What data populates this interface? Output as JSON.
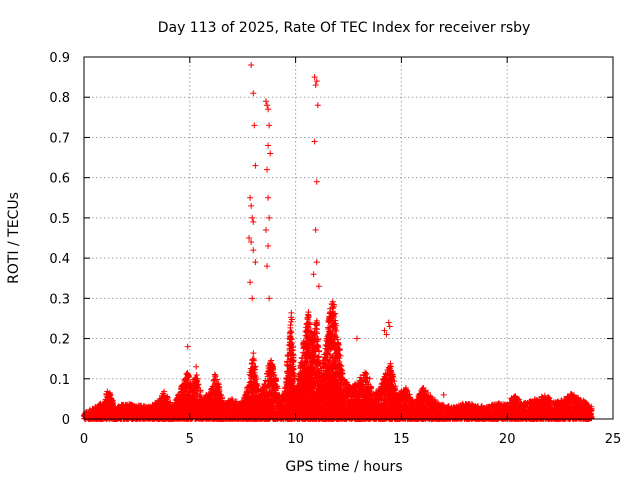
{
  "chart_data": {
    "type": "scatter",
    "title": "Day 113 of 2025, Rate Of TEC Index for receiver rsby",
    "xlabel": "GPS time / hours",
    "ylabel": "ROTI / TECUs",
    "xlim": [
      0,
      25
    ],
    "ylim": [
      0,
      0.9
    ],
    "x_ticks": [
      "0",
      "5",
      "10",
      "15",
      "20",
      "25"
    ],
    "y_ticks": [
      "0",
      "0.1",
      "0.2",
      "0.3",
      "0.4",
      "0.5",
      "0.6",
      "0.7",
      "0.8",
      "0.9"
    ],
    "grid": true,
    "marker": "+",
    "color": "#ff0000",
    "series": [
      {
        "x": [
          4.9,
          5.3,
          7.9,
          8.0,
          8.05,
          8.1,
          7.85,
          7.9,
          7.95,
          8.0,
          7.8,
          7.9,
          8.0,
          8.1,
          7.85,
          7.95,
          8.6,
          8.65,
          8.7,
          8.75,
          8.7,
          8.8,
          8.65,
          8.7,
          8.75,
          8.6,
          8.7,
          8.65,
          8.75,
          10.9,
          11.0,
          10.95,
          11.05,
          10.9,
          11.0,
          10.95,
          11.0,
          10.85,
          11.1,
          12.9,
          13.5,
          14.2,
          14.4,
          14.45,
          14.3,
          17.0
        ],
        "y": [
          0.18,
          0.13,
          0.88,
          0.81,
          0.73,
          0.63,
          0.55,
          0.53,
          0.5,
          0.49,
          0.45,
          0.44,
          0.42,
          0.39,
          0.34,
          0.3,
          0.79,
          0.78,
          0.77,
          0.73,
          0.68,
          0.66,
          0.62,
          0.55,
          0.5,
          0.47,
          0.43,
          0.38,
          0.3,
          0.85,
          0.84,
          0.83,
          0.78,
          0.69,
          0.59,
          0.47,
          0.39,
          0.36,
          0.33,
          0.2,
          0.1,
          0.22,
          0.24,
          0.23,
          0.21,
          0.06
        ],
        "baseline": {
          "points": [
            [
              0.0,
              0.015
            ],
            [
              0.5,
              0.03
            ],
            [
              1.0,
              0.045
            ],
            [
              1.1,
              0.08
            ],
            [
              1.5,
              0.03
            ],
            [
              2.0,
              0.04
            ],
            [
              2.5,
              0.035
            ],
            [
              3.0,
              0.03
            ],
            [
              3.5,
              0.045
            ],
            [
              3.8,
              0.07
            ],
            [
              4.2,
              0.03
            ],
            [
              4.6,
              0.08
            ],
            [
              4.9,
              0.12
            ],
            [
              5.1,
              0.08
            ],
            [
              5.3,
              0.12
            ],
            [
              5.6,
              0.05
            ],
            [
              6.0,
              0.07
            ],
            [
              6.2,
              0.12
            ],
            [
              6.6,
              0.04
            ],
            [
              7.0,
              0.05
            ],
            [
              7.5,
              0.04
            ],
            [
              7.8,
              0.1
            ],
            [
              8.0,
              0.17
            ],
            [
              8.3,
              0.06
            ],
            [
              8.6,
              0.1
            ],
            [
              8.8,
              0.16
            ],
            [
              9.0,
              0.12
            ],
            [
              9.3,
              0.05
            ],
            [
              9.5,
              0.08
            ],
            [
              9.8,
              0.28
            ],
            [
              10.0,
              0.06
            ],
            [
              10.4,
              0.2
            ],
            [
              10.6,
              0.27
            ],
            [
              10.8,
              0.2
            ],
            [
              11.0,
              0.25
            ],
            [
              11.2,
              0.12
            ],
            [
              11.4,
              0.18
            ],
            [
              11.6,
              0.27
            ],
            [
              11.8,
              0.3
            ],
            [
              12.0,
              0.2
            ],
            [
              12.3,
              0.1
            ],
            [
              12.6,
              0.08
            ],
            [
              13.0,
              0.1
            ],
            [
              13.3,
              0.12
            ],
            [
              13.7,
              0.06
            ],
            [
              14.0,
              0.08
            ],
            [
              14.3,
              0.12
            ],
            [
              14.5,
              0.14
            ],
            [
              14.8,
              0.06
            ],
            [
              15.2,
              0.08
            ],
            [
              15.6,
              0.04
            ],
            [
              16.0,
              0.08
            ],
            [
              16.5,
              0.05
            ],
            [
              17.0,
              0.035
            ],
            [
              17.5,
              0.03
            ],
            [
              18.0,
              0.04
            ],
            [
              18.5,
              0.035
            ],
            [
              19.0,
              0.03
            ],
            [
              19.5,
              0.04
            ],
            [
              20.0,
              0.035
            ],
            [
              20.3,
              0.06
            ],
            [
              20.8,
              0.04
            ],
            [
              21.3,
              0.05
            ],
            [
              21.8,
              0.06
            ],
            [
              22.2,
              0.045
            ],
            [
              22.7,
              0.05
            ],
            [
              23.0,
              0.065
            ],
            [
              23.5,
              0.05
            ],
            [
              24.0,
              0.03
            ]
          ]
        }
      }
    ]
  }
}
